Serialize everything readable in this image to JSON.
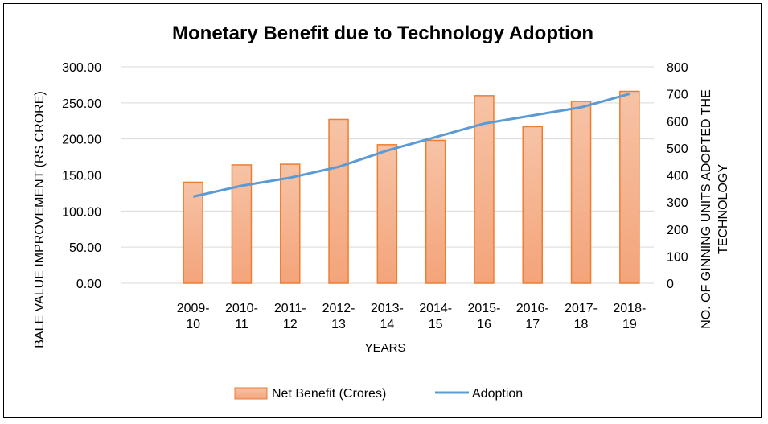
{
  "chart_data": {
    "type": "bar",
    "title": "Monetary Benefit  due to Technology Adoption",
    "xlabel": "YEARS",
    "ylabel": "BALE VALUE IMPROVEMENT (RS CRORE)",
    "y2label_line1": "NO. OF GINNING UNITS ADOPTED THE",
    "y2label_line2": "TECHNOLOGY",
    "categories": [
      [
        "2009-",
        "10"
      ],
      [
        "2010-",
        "11"
      ],
      [
        "2011-",
        "12"
      ],
      [
        "2012-",
        "13"
      ],
      [
        "2013-",
        "14"
      ],
      [
        "2014-",
        "15"
      ],
      [
        "2015-",
        "16"
      ],
      [
        "2016-",
        "17"
      ],
      [
        "2017-",
        "18"
      ],
      [
        "2018-",
        "19"
      ]
    ],
    "ylim": [
      0,
      300
    ],
    "y_ticks": [
      "0.00",
      "50.00",
      "100.00",
      "150.00",
      "200.00",
      "250.00",
      "300.00"
    ],
    "y2lim": [
      0,
      800
    ],
    "y2_ticks": [
      "0",
      "100",
      "200",
      "300",
      "400",
      "500",
      "600",
      "700",
      "800"
    ],
    "series": [
      {
        "name": "Net Benefit (Crores)",
        "type": "bar",
        "axis": "left",
        "values": [
          140,
          164,
          165,
          227,
          192,
          198,
          260,
          217,
          252,
          266
        ]
      },
      {
        "name": "Adoption",
        "type": "line",
        "axis": "right",
        "values": [
          320,
          360,
          390,
          430,
          490,
          540,
          590,
          620,
          650,
          700
        ]
      }
    ],
    "grid": true,
    "legend": "bottom"
  },
  "colors": {
    "bar_fill_top": "#f6c3a6",
    "bar_fill_bottom": "#f4a47a",
    "bar_stroke": "#ed7d31",
    "line": "#5b9bd5",
    "grid": "#d9d9d9",
    "text": "#000000"
  }
}
